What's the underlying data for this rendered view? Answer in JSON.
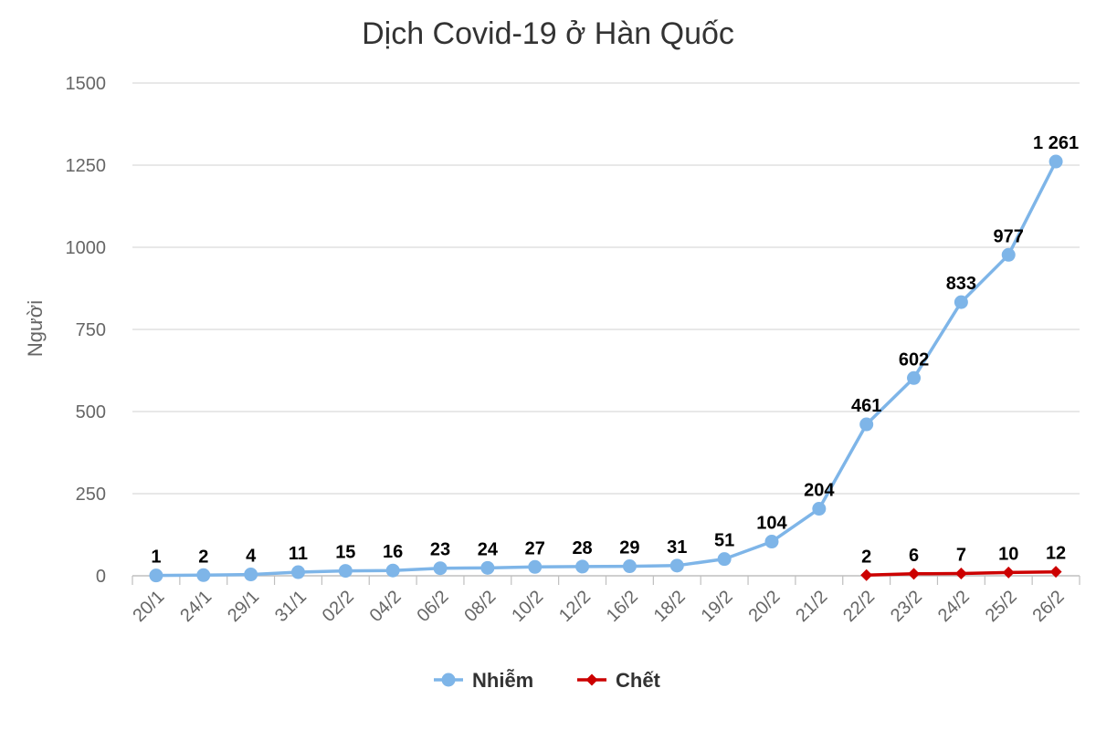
{
  "chart_data": {
    "type": "line",
    "title": "Dịch Covid-19 ở Hàn Quốc",
    "xlabel": "",
    "ylabel": "Người",
    "categories": [
      "20/1",
      "24/1",
      "29/1",
      "31/1",
      "02/2",
      "04/2",
      "06/2",
      "08/2",
      "10/2",
      "12/2",
      "16/2",
      "18/2",
      "19/2",
      "20/2",
      "21/2",
      "22/2",
      "23/2",
      "24/2",
      "25/2",
      "26/2"
    ],
    "ylim": [
      0,
      1500
    ],
    "yticks": [
      "0",
      "250",
      "500",
      "750",
      "1000",
      "1250",
      "1500"
    ],
    "grid": true,
    "legend_position": "bottom",
    "series": [
      {
        "name": "Nhiễm",
        "color": "#7eb5e8",
        "marker": "circle",
        "values": [
          1,
          2,
          4,
          11,
          15,
          16,
          23,
          24,
          27,
          28,
          29,
          31,
          51,
          104,
          204,
          461,
          602,
          833,
          977,
          1261
        ],
        "labels": [
          "1",
          "2",
          "4",
          "11",
          "15",
          "16",
          "23",
          "24",
          "27",
          "28",
          "29",
          "31",
          "51",
          "104",
          "204",
          "461",
          "602",
          "833",
          "977",
          "1 261"
        ]
      },
      {
        "name": "Chết",
        "color": "#cc0000",
        "marker": "diamond",
        "values": [
          null,
          null,
          null,
          null,
          null,
          null,
          null,
          null,
          null,
          null,
          null,
          null,
          null,
          null,
          null,
          2,
          6,
          7,
          10,
          12
        ],
        "labels": [
          null,
          null,
          null,
          null,
          null,
          null,
          null,
          null,
          null,
          null,
          null,
          null,
          null,
          null,
          null,
          "2",
          "6",
          "7",
          "10",
          "12"
        ]
      }
    ]
  }
}
